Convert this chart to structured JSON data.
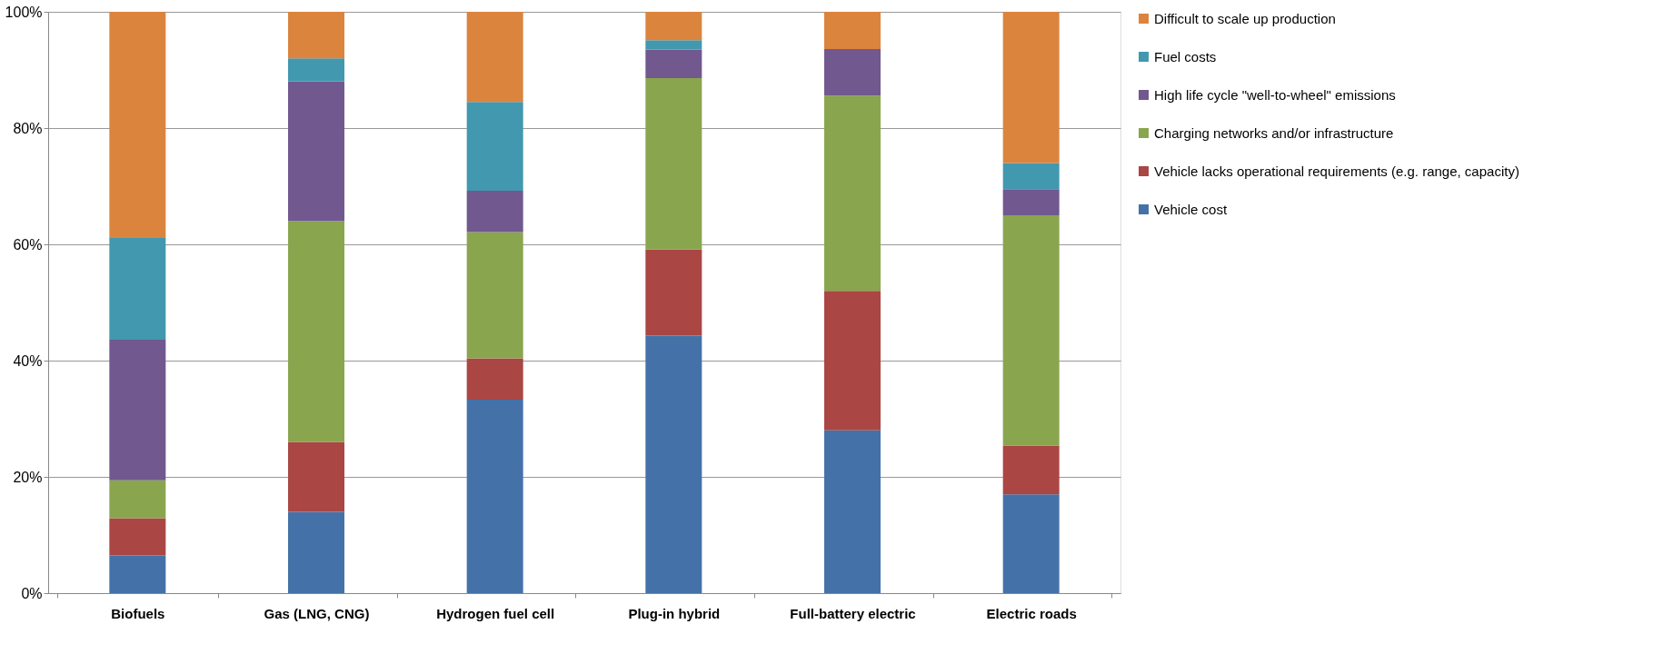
{
  "chart_data": {
    "type": "bar",
    "stacked": true,
    "categories": [
      "Biofuels",
      "Gas (LNG, CNG)",
      "Hydrogen fuel cell",
      "Plug-in hybrid",
      "Full-battery electric",
      "Electric roads"
    ],
    "series": [
      {
        "name": "Vehicle cost",
        "color": "#4472a8",
        "values": [
          6.5,
          14,
          33.3,
          44.3,
          28,
          17
        ]
      },
      {
        "name": "Vehicle lacks operational requirements (e.g. range, capacity)",
        "color": "#aa4643",
        "values": [
          6.4,
          12,
          7.1,
          14.8,
          24,
          8.4
        ]
      },
      {
        "name": "Charging networks and/or infrastructure",
        "color": "#89a54e",
        "values": [
          6.5,
          38,
          21.7,
          29.5,
          33.6,
          39.6
        ]
      },
      {
        "name": "High life cycle \"well-to-wheel\" emissions",
        "color": "#71588f",
        "values": [
          24.2,
          24,
          7.1,
          4.9,
          8,
          4.5
        ]
      },
      {
        "name": "Fuel costs",
        "color": "#4198af",
        "values": [
          17.5,
          4,
          15.3,
          1.6,
          0,
          4.5
        ]
      },
      {
        "name": "Difficult to scale up production",
        "color": "#db843d",
        "values": [
          38.9,
          8,
          15.5,
          4.9,
          6.4,
          26
        ]
      }
    ],
    "ylim": [
      0,
      100
    ],
    "yticks": [
      {
        "value": 0,
        "label": "0%"
      },
      {
        "value": 20,
        "label": "20%"
      },
      {
        "value": 40,
        "label": "40%"
      },
      {
        "value": 60,
        "label": "60%"
      },
      {
        "value": 80,
        "label": "80%"
      },
      {
        "value": 100,
        "label": "100%"
      }
    ],
    "grid": "y",
    "legend": "right"
  }
}
